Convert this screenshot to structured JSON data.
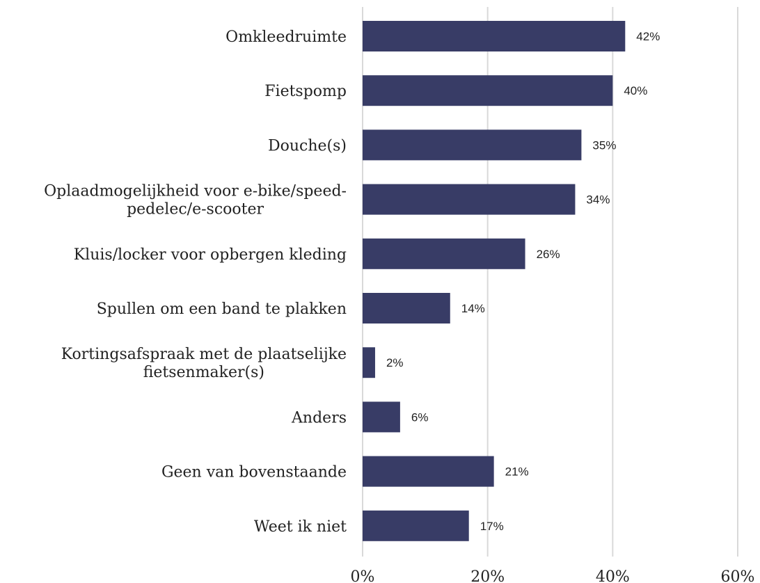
{
  "chart_data": {
    "type": "bar",
    "orientation": "horizontal",
    "categories": [
      [
        "Omkleedruimte"
      ],
      [
        "Fietspomp"
      ],
      [
        "Douche(s)"
      ],
      [
        "Oplaadmogelijkheid voor e-bike/speed-",
        "pedelec/e-scooter"
      ],
      [
        "Kluis/locker voor opbergen kleding"
      ],
      [
        "Spullen om een band te plakken"
      ],
      [
        "Kortingsafspraak met de plaatselijke",
        "fietsenmaker(s)"
      ],
      [
        "Anders"
      ],
      [
        "Geen van bovenstaande"
      ],
      [
        "Weet ik niet"
      ]
    ],
    "values": [
      42,
      40,
      35,
      34,
      26,
      14,
      2,
      6,
      21,
      17
    ],
    "value_labels": [
      "42%",
      "40%",
      "35%",
      "34%",
      "26%",
      "14%",
      "2%",
      "6%",
      "21%",
      "17%"
    ],
    "xlim": [
      0,
      60
    ],
    "xticks": [
      0,
      20,
      40,
      60
    ],
    "xtick_labels": [
      "0%",
      "20%",
      "40%",
      "60%"
    ],
    "grid": "vertical",
    "legend": "none",
    "colors": {
      "bar": "#383c66",
      "grid": "#d9d9d9",
      "text": "#222222"
    }
  }
}
